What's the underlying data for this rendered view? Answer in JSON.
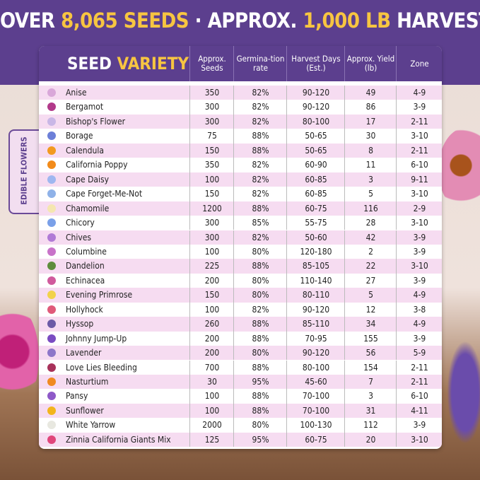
{
  "header": {
    "title": [
      "OVER ",
      "8,065 SEEDS",
      " · APPROX. ",
      "1,000 LB",
      " HARVEST"
    ]
  },
  "side_label": "EDIBLE FLOWERS",
  "table": {
    "title": [
      "SEED ",
      "VARIETY"
    ],
    "columns": [
      "Approx. Seeds",
      "Germina-tion rate",
      "Harvest Days (Est.)",
      "Approx. Yield (lb)",
      "Zone"
    ],
    "rows": [
      [
        "Anise",
        "350",
        "82%",
        "90-120",
        "49",
        "4-9"
      ],
      [
        "Bergamot",
        "300",
        "82%",
        "90-120",
        "86",
        "3-9"
      ],
      [
        "Bishop's Flower",
        "300",
        "82%",
        "80-100",
        "17",
        "2-11"
      ],
      [
        "Borage",
        "75",
        "88%",
        "50-65",
        "30",
        "3-10"
      ],
      [
        "Calendula",
        "150",
        "88%",
        "50-65",
        "8",
        "2-11"
      ],
      [
        "California Poppy",
        "350",
        "82%",
        "60-90",
        "11",
        "6-10"
      ],
      [
        "Cape Daisy",
        "100",
        "82%",
        "60-85",
        "3",
        "9-11"
      ],
      [
        "Cape Forget-Me-Not",
        "150",
        "82%",
        "60-85",
        "5",
        "3-10"
      ],
      [
        "Chamomile",
        "1200",
        "88%",
        "60-75",
        "116",
        "2-9"
      ],
      [
        "Chicory",
        "300",
        "85%",
        "55-75",
        "28",
        "3-10"
      ],
      [
        "Chives",
        "300",
        "82%",
        "50-60",
        "42",
        "3-9"
      ],
      [
        "Columbine",
        "100",
        "80%",
        "120-180",
        "2",
        "3-9"
      ],
      [
        "Dandelion",
        "225",
        "88%",
        "85-105",
        "22",
        "3-10"
      ],
      [
        "Echinacea",
        "200",
        "80%",
        "110-140",
        "27",
        "3-9"
      ],
      [
        "Evening Primrose",
        "150",
        "80%",
        "80-110",
        "5",
        "4-9"
      ],
      [
        "Hollyhock",
        "100",
        "82%",
        "90-120",
        "12",
        "3-8"
      ],
      [
        "Hyssop",
        "260",
        "88%",
        "85-110",
        "34",
        "4-9"
      ],
      [
        "Johnny Jump-Up",
        "200",
        "88%",
        "70-95",
        "155",
        "3-9"
      ],
      [
        "Lavender",
        "200",
        "80%",
        "90-120",
        "56",
        "5-9"
      ],
      [
        "Love Lies Bleeding",
        "700",
        "88%",
        "80-100",
        "154",
        "2-11"
      ],
      [
        "Nasturtium",
        "30",
        "95%",
        "45-60",
        "7",
        "2-11"
      ],
      [
        "Pansy",
        "100",
        "88%",
        "70-100",
        "3",
        "6-10"
      ],
      [
        "Sunflower",
        "100",
        "88%",
        "70-100",
        "31",
        "4-11"
      ],
      [
        "White Yarrow",
        "2000",
        "80%",
        "100-130",
        "112",
        "3-9"
      ],
      [
        "Zinnia California Giants Mix",
        "125",
        "95%",
        "60-75",
        "20",
        "3-10"
      ]
    ]
  }
}
